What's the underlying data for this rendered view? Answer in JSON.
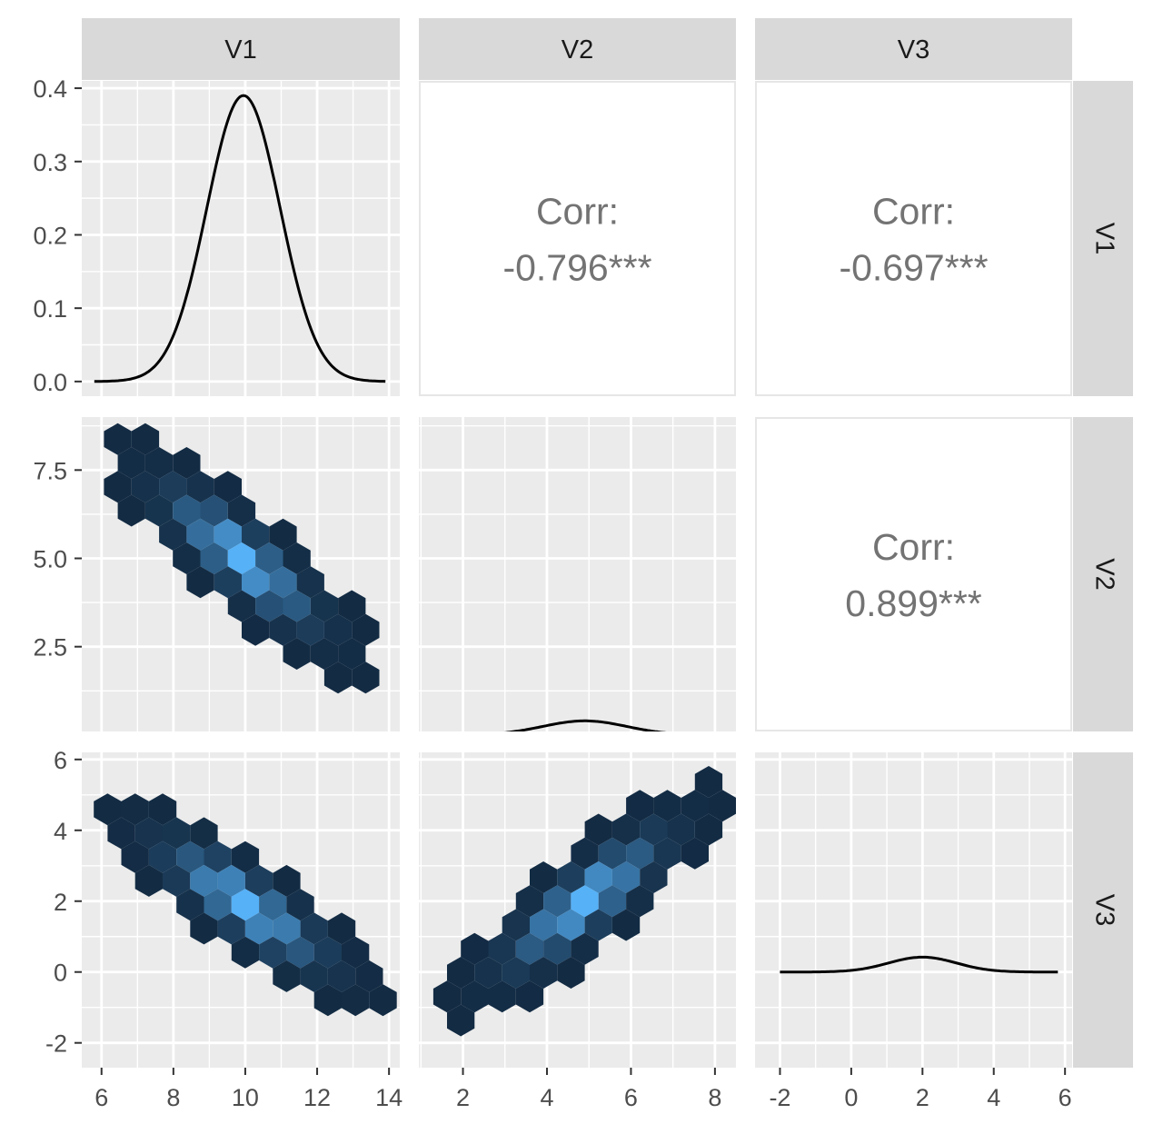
{
  "chart_data": {
    "type": "scatter-matrix",
    "variables": [
      "V1",
      "V2",
      "V3"
    ],
    "axis_ticks": {
      "V1": [
        6,
        8,
        10,
        12,
        14
      ],
      "V2": [
        2,
        4,
        6,
        8
      ],
      "V3": [
        -2,
        0,
        2,
        4,
        6
      ]
    },
    "axis_tick_labels": {
      "V1": [
        "6",
        "8",
        "10",
        "12",
        "14"
      ],
      "V2": [
        "2",
        "4",
        "6",
        "8"
      ],
      "V3": [
        "-2",
        "0",
        "2",
        "4",
        "6"
      ]
    },
    "row_axis_ticks": {
      "V1_density": [
        0.0,
        0.1,
        0.2,
        0.3,
        0.4
      ],
      "V2": [
        2.5,
        5.0,
        7.5
      ],
      "V3": [
        -2,
        0,
        2,
        4,
        6
      ]
    },
    "row_axis_tick_labels": {
      "V1_density": [
        "0.0",
        "0.1",
        "0.2",
        "0.3",
        "0.4"
      ],
      "V2": [
        "2.5",
        "5.0",
        "7.5"
      ],
      "V3": [
        "-2",
        "0",
        "2",
        "4",
        "6"
      ]
    },
    "ranges": {
      "V1": [
        5.45,
        14.3
      ],
      "V2": [
        0.95,
        8.5
      ],
      "V3": [
        -2.7,
        6.2
      ],
      "V2_rows": [
        0.1,
        9.0
      ],
      "density": [
        -0.02,
        0.41
      ]
    },
    "densities": {
      "V1": {
        "mean": 9.95,
        "sd": 1.02,
        "peak": 0.39,
        "x_range": [
          5.8,
          13.9
        ]
      },
      "V2": {
        "mean": 4.9,
        "sd": 1.0,
        "peak": 0.4,
        "x_range": [
          1.1,
          8.4
        ]
      },
      "V3": {
        "mean": 2.0,
        "sd": 0.95,
        "peak": 0.42,
        "x_range": [
          -2.0,
          5.8
        ]
      }
    },
    "correlations": [
      {
        "row": "V1",
        "col": "V2",
        "label": "Corr:",
        "value": "-0.796***"
      },
      {
        "row": "V1",
        "col": "V3",
        "label": "Corr:",
        "value": "-0.697***"
      },
      {
        "row": "V2",
        "col": "V3",
        "label": "Corr:",
        "value": "0.899***"
      }
    ],
    "hexbin_panels": [
      {
        "x": "V1",
        "y": "V2",
        "slope": -0.92,
        "x_mean": 9.9,
        "y_mean": 5.0,
        "spread": 0.55
      },
      {
        "x": "V1",
        "y": "V3",
        "slope": -0.75,
        "x_mean": 10.0,
        "y_mean": 1.9,
        "spread": 0.6
      },
      {
        "x": "V2",
        "y": "V3",
        "slope": 1.0,
        "x_mean": 4.9,
        "y_mean": 2.0,
        "spread": 0.45
      }
    ],
    "grid": true,
    "colors": {
      "panel_bg": "#ebebeb",
      "grid": "#ffffff",
      "strip_bg": "#d9d9d9",
      "hex_low": "#132b43",
      "hex_high": "#56b1f7",
      "line": "#000000",
      "corr_text": "#737373"
    }
  }
}
